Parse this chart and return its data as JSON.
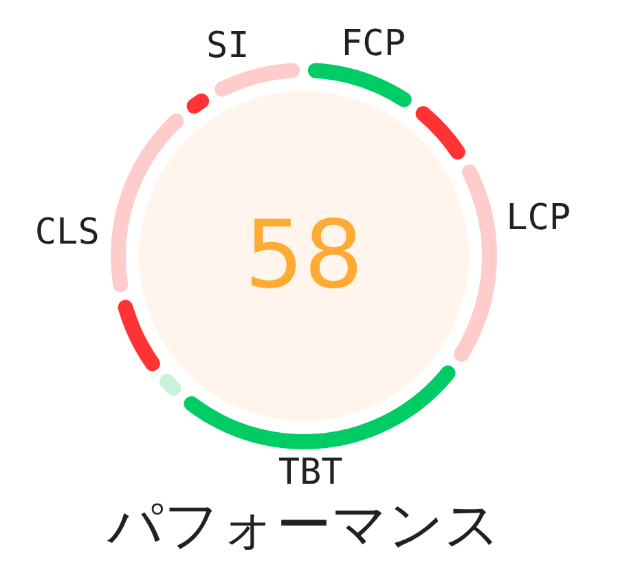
{
  "chart_data": {
    "type": "donut",
    "title": "パフォーマンス",
    "categories": [
      "FCP",
      null,
      "LCP",
      "TBT",
      null,
      null,
      "CLS",
      null,
      "SI"
    ],
    "values": [
      10,
      6,
      19,
      28,
      2,
      7,
      18,
      2,
      8
    ],
    "colors": [
      "#00cc66",
      "#ff3333",
      "#ffcccc",
      "#00cc66",
      "#c8f2dc",
      "#ff3333",
      "#ffcccc",
      "#ff3333",
      "#ffcccc"
    ],
    "annotations": [
      "58"
    ]
  }
}
